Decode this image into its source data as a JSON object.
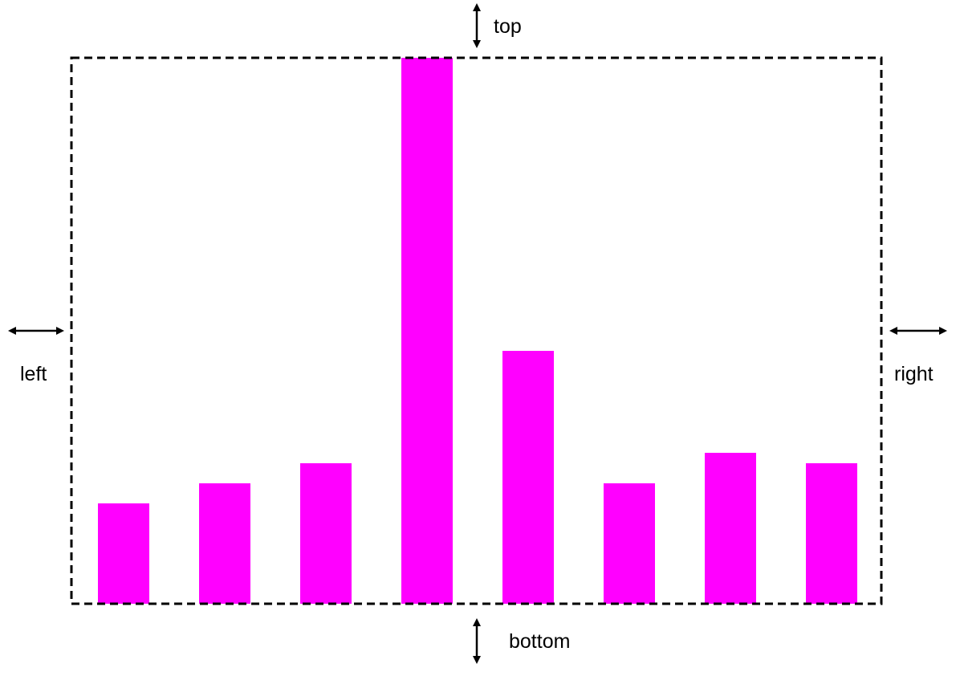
{
  "labels": {
    "top": "top",
    "left": "left",
    "right": "right",
    "bottom": "bottom"
  },
  "colors": {
    "bar": "#ff00ff",
    "frame": "#000000",
    "arrow": "#000000"
  },
  "icons": {
    "top": "double-arrow-vertical-icon",
    "bottom": "double-arrow-vertical-icon",
    "left": "double-arrow-horizontal-icon",
    "right": "double-arrow-horizontal-icon"
  },
  "bar_values": [
    125,
    150,
    175,
    680,
    315,
    150,
    188,
    175
  ],
  "bar_max": 680
}
